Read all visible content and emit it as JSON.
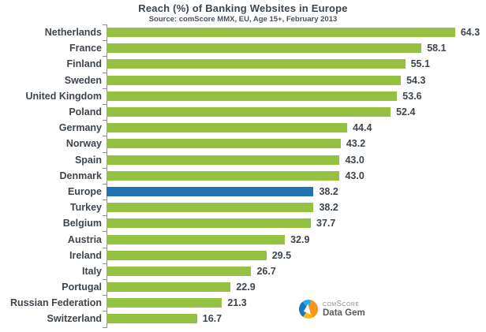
{
  "title": "Reach (%) of Banking Websites in Europe",
  "subtitle": "Source: comScore MMX, EU, Age 15+, February 2013",
  "chart_data": {
    "type": "bar",
    "orientation": "horizontal",
    "title": "Reach (%) of Banking Websites in Europe",
    "subtitle": "Source: comScore MMX, EU, Age 15+, February 2013",
    "xlabel": "",
    "ylabel": "",
    "xlim": [
      0,
      70
    ],
    "grid": false,
    "legend": "none",
    "value_labels": true,
    "categories": [
      "Netherlands",
      "France",
      "Finland",
      "Sweden",
      "United Kingdom",
      "Poland",
      "Germany",
      "Norway",
      "Spain",
      "Denmark",
      "Europe",
      "Turkey",
      "Belgium",
      "Austria",
      "Ireland",
      "Italy",
      "Portugal",
      "Russian Federation",
      "Switzerland"
    ],
    "values": [
      64.3,
      58.1,
      55.1,
      54.3,
      53.6,
      52.4,
      44.4,
      43.2,
      43.0,
      43.0,
      38.2,
      38.2,
      37.7,
      32.9,
      29.5,
      26.7,
      22.9,
      21.3,
      16.7
    ],
    "highlight_category": "Europe",
    "colors": {
      "bar": "#94c141",
      "highlight_bar": "#2274b5",
      "axis": "#8c8c8c",
      "label": "#3d454d"
    }
  },
  "logo": {
    "line1": "comScore",
    "line2": "Data Gem"
  }
}
